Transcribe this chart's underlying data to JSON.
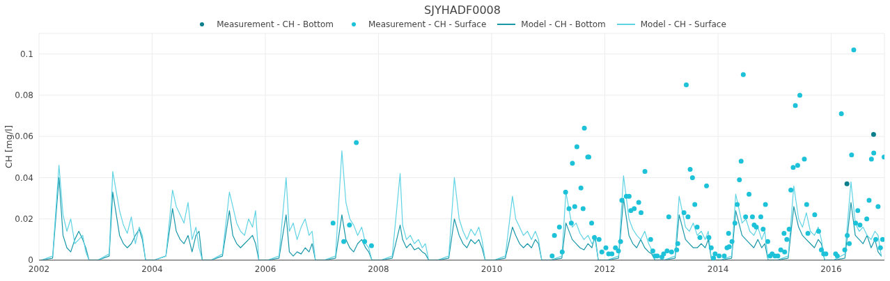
{
  "chart_data": {
    "type": "line",
    "title": "SJYHADF0008",
    "ylabel": "CH [mg/l]",
    "legend": "top",
    "grid": true,
    "xlim": [
      "2002-01-01",
      "2016-12-10"
    ],
    "xticks": [
      "2002",
      "2004",
      "2006",
      "2008",
      "2010",
      "2012",
      "2014",
      "2016"
    ],
    "ylim": [
      0,
      0.11
    ],
    "yticks": [
      0,
      0.02,
      0.04,
      0.06,
      0.08,
      0.1
    ],
    "x": [
      "2002-01-15",
      "2002-03-30",
      "2002-05-10",
      "2002-06-05",
      "2002-06-30",
      "2002-07-25",
      "2002-08-20",
      "2002-09-15",
      "2002-10-10",
      "2002-10-30",
      "2002-11-20",
      "2003-01-15",
      "2003-03-30",
      "2003-04-22",
      "2003-06-05",
      "2003-06-30",
      "2003-07-25",
      "2003-08-20",
      "2003-09-15",
      "2003-10-10",
      "2003-10-30",
      "2003-11-20",
      "2004-01-15",
      "2004-03-30",
      "2004-05-12",
      "2004-06-05",
      "2004-06-30",
      "2004-07-25",
      "2004-08-20",
      "2004-09-15",
      "2004-10-10",
      "2004-10-30",
      "2004-11-20",
      "2005-01-15",
      "2005-03-30",
      "2005-05-14",
      "2005-06-05",
      "2005-06-30",
      "2005-07-25",
      "2005-08-20",
      "2005-09-15",
      "2005-10-10",
      "2005-10-30",
      "2005-11-20",
      "2006-01-15",
      "2006-03-30",
      "2006-05-15",
      "2006-06-05",
      "2006-06-30",
      "2006-07-25",
      "2006-08-20",
      "2006-09-15",
      "2006-10-10",
      "2006-10-30",
      "2006-11-20",
      "2007-01-15",
      "2007-03-30",
      "2007-05-10",
      "2007-06-05",
      "2007-06-30",
      "2007-07-25",
      "2007-08-20",
      "2007-09-15",
      "2007-10-10",
      "2007-10-30",
      "2007-11-20",
      "2008-01-15",
      "2008-03-30",
      "2008-05-20",
      "2008-06-05",
      "2008-06-30",
      "2008-07-25",
      "2008-08-20",
      "2008-09-15",
      "2008-10-10",
      "2008-10-30",
      "2008-11-20",
      "2009-01-15",
      "2009-03-30",
      "2009-05-05",
      "2009-06-05",
      "2009-06-30",
      "2009-07-25",
      "2009-08-20",
      "2009-09-15",
      "2009-10-10",
      "2009-10-30",
      "2009-11-20",
      "2010-01-15",
      "2010-03-30",
      "2010-05-15",
      "2010-06-05",
      "2010-06-30",
      "2010-07-25",
      "2010-08-20",
      "2010-09-15",
      "2010-10-10",
      "2010-10-30",
      "2010-11-20",
      "2011-01-15",
      "2011-03-30",
      "2011-04-25",
      "2011-06-05",
      "2011-06-30",
      "2011-07-25",
      "2011-08-20",
      "2011-09-15",
      "2011-10-10",
      "2011-10-30",
      "2011-11-20",
      "2012-01-15",
      "2012-03-30",
      "2012-05-01",
      "2012-06-05",
      "2012-06-30",
      "2012-07-25",
      "2012-08-20",
      "2012-09-15",
      "2012-10-10",
      "2012-10-30",
      "2012-11-20",
      "2013-01-15",
      "2013-03-30",
      "2013-04-25",
      "2013-06-05",
      "2013-06-30",
      "2013-07-25",
      "2013-08-20",
      "2013-09-15",
      "2013-10-10",
      "2013-10-30",
      "2013-11-20",
      "2014-01-15",
      "2014-03-30",
      "2014-04-25",
      "2014-06-05",
      "2014-06-30",
      "2014-07-25",
      "2014-08-20",
      "2014-09-15",
      "2014-10-10",
      "2014-10-30",
      "2014-11-20",
      "2015-01-15",
      "2015-03-30",
      "2015-05-05",
      "2015-06-05",
      "2015-06-30",
      "2015-07-25",
      "2015-08-20",
      "2015-09-15",
      "2015-10-10",
      "2015-10-30",
      "2015-11-20",
      "2016-01-15",
      "2016-03-30",
      "2016-05-08",
      "2016-06-05",
      "2016-06-30",
      "2016-07-25",
      "2016-08-20",
      "2016-09-15",
      "2016-10-10",
      "2016-10-30",
      "2016-11-20"
    ],
    "series": [
      {
        "name": "Measurement - CH - Bottom",
        "type": "scatter",
        "marker": "circle",
        "color": "#0b7f8c",
        "x": [
          "2016-04-12",
          "2016-10-01"
        ],
        "values": [
          0.037,
          0.061
        ]
      },
      {
        "name": "Measurement - CH - Surface",
        "type": "scatter",
        "marker": "circle",
        "color": "#1ec2d8",
        "x": [
          "2007-03-14",
          "2007-05-22",
          "2007-06-28",
          "2007-08-11",
          "2007-10-04",
          "2007-11-17",
          "2011-01-26",
          "2011-02-10",
          "2011-03-14",
          "2011-04-01",
          "2011-04-23",
          "2011-05-15",
          "2011-05-30",
          "2011-06-06",
          "2011-06-21",
          "2011-07-05",
          "2011-07-31",
          "2011-08-14",
          "2011-08-22",
          "2011-09-13",
          "2011-09-20",
          "2011-10-08",
          "2011-10-26",
          "2011-11-25",
          "2011-12-13",
          "2012-01-08",
          "2012-01-26",
          "2012-02-16",
          "2012-03-10",
          "2012-03-29",
          "2012-04-12",
          "2012-04-20",
          "2012-05-19",
          "2012-06-06",
          "2012-06-17",
          "2012-07-09",
          "2012-08-07",
          "2012-08-22",
          "2012-09-16",
          "2012-10-23",
          "2012-11-06",
          "2012-11-21",
          "2012-12-05",
          "2013-01-04",
          "2013-01-15",
          "2013-02-06",
          "2013-02-17",
          "2013-03-07",
          "2013-04-09",
          "2013-04-16",
          "2013-05-26",
          "2013-06-10",
          "2013-06-21",
          "2013-07-05",
          "2013-07-20",
          "2013-08-04",
          "2013-08-19",
          "2013-09-06",
          "2013-10-19",
          "2013-11-03",
          "2013-11-18",
          "2013-12-03",
          "2013-12-13",
          "2014-01-08",
          "2014-02-10",
          "2014-02-28",
          "2014-03-10",
          "2014-03-14",
          "2014-04-01",
          "2014-04-20",
          "2014-05-05",
          "2014-05-19",
          "2014-05-30",
          "2014-06-13",
          "2014-06-28",
          "2014-07-20",
          "2014-08-11",
          "2014-08-22",
          "2014-09-05",
          "2014-10-04",
          "2014-10-19",
          "2014-11-03",
          "2014-11-18",
          "2014-12-03",
          "2014-12-16",
          "2015-01-04",
          "2015-01-22",
          "2015-02-10",
          "2015-03-03",
          "2015-03-07",
          "2015-03-21",
          "2015-04-05",
          "2015-04-16",
          "2015-05-01",
          "2015-05-15",
          "2015-05-30",
          "2015-06-13",
          "2015-07-12",
          "2015-07-27",
          "2015-08-04",
          "2015-09-17",
          "2015-10-12",
          "2015-10-30",
          "2015-11-14",
          "2015-11-28",
          "2016-01-30",
          "2016-02-10",
          "2016-03-07",
          "2016-03-29",
          "2016-04-14",
          "2016-04-27",
          "2016-05-12",
          "2016-05-26",
          "2016-06-07",
          "2016-06-21",
          "2016-07-05",
          "2016-08-18",
          "2016-09-02",
          "2016-09-17",
          "2016-10-02",
          "2016-10-15",
          "2016-10-30",
          "2016-11-14",
          "2016-11-28",
          "2016-12-08"
        ],
        "values": [
          0.018,
          0.009,
          0.017,
          0.057,
          0.009,
          0.007,
          0.002,
          0.012,
          0.016,
          0.004,
          0.033,
          0.025,
          0.018,
          0.047,
          0.026,
          0.055,
          0.035,
          0.025,
          0.064,
          0.05,
          0.05,
          0.018,
          0.011,
          0.01,
          0.004,
          0.006,
          0.003,
          0.003,
          0.006,
          0.0045,
          0.009,
          0.029,
          0.031,
          0.031,
          0.024,
          0.025,
          0.028,
          0.023,
          0.043,
          0.01,
          0.0045,
          0.002,
          0.002,
          0.0015,
          0.003,
          0.0045,
          0.021,
          0.004,
          0.005,
          0.008,
          0.023,
          0.085,
          0.021,
          0.044,
          0.04,
          0.027,
          0.016,
          0.011,
          0.036,
          0.011,
          0.006,
          0.001,
          0.003,
          0.002,
          0.002,
          0.006,
          0.013,
          0.0065,
          0.009,
          0.018,
          0.027,
          0.039,
          0.048,
          0.09,
          0.021,
          0.032,
          0.021,
          0.017,
          0.016,
          0.021,
          0.015,
          0.027,
          0.009,
          0.002,
          0.003,
          0.002,
          0.002,
          0.005,
          0.013,
          0.004,
          0.01,
          0.015,
          0.034,
          0.045,
          0.075,
          0.046,
          0.08,
          0.049,
          0.027,
          0.013,
          0.022,
          0.014,
          0.005,
          0.003,
          0.003,
          0.003,
          0.002,
          0.071,
          0.005,
          0.012,
          0.008,
          0.051,
          0.102,
          0.018,
          0.024,
          0.017,
          0.02,
          0.029,
          0.049,
          0.052,
          0.01,
          0.026,
          0.006,
          0.01,
          0.05
        ]
      },
      {
        "name": "Model - CH - Bottom",
        "color": "#1797a8",
        "values": [
          0,
          0.001,
          0.04,
          0.012,
          0.006,
          0.004,
          0.01,
          0.014,
          0.01,
          0.006,
          0,
          0,
          0.002,
          0.033,
          0.012,
          0.008,
          0.006,
          0.008,
          0.012,
          0.015,
          0.01,
          0,
          0,
          0.002,
          0.025,
          0.014,
          0.01,
          0.008,
          0.012,
          0.004,
          0.012,
          0.014,
          0,
          0,
          0.002,
          0.024,
          0.012,
          0.008,
          0.006,
          0.008,
          0.01,
          0.012,
          0.008,
          0,
          0,
          0.001,
          0.022,
          0.004,
          0.002,
          0.004,
          0.003,
          0.006,
          0.004,
          0.008,
          0,
          0,
          0.001,
          0.022,
          0.01,
          0.006,
          0.004,
          0.008,
          0.01,
          0.006,
          0.004,
          0,
          0,
          0.001,
          0.017,
          0.01,
          0.006,
          0.008,
          0.005,
          0.006,
          0.004,
          0.003,
          0,
          0,
          0.001,
          0.02,
          0.012,
          0.008,
          0.006,
          0.01,
          0.008,
          0.01,
          0.006,
          0,
          0,
          0.001,
          0.016,
          0.012,
          0.008,
          0.006,
          0.008,
          0.006,
          0.01,
          0.008,
          0,
          0,
          0.001,
          0.018,
          0.01,
          0.008,
          0.006,
          0.005,
          0.008,
          0.006,
          0.012,
          0,
          0,
          0.001,
          0.03,
          0.012,
          0.008,
          0.006,
          0.01,
          0.006,
          0.004,
          0.003,
          0,
          0,
          0.001,
          0.022,
          0.01,
          0.008,
          0.006,
          0.006,
          0.008,
          0.006,
          0.01,
          0,
          0,
          0.001,
          0.024,
          0.012,
          0.01,
          0.008,
          0.006,
          0.01,
          0.006,
          0.008,
          0,
          0,
          0.001,
          0.026,
          0.016,
          0.012,
          0.01,
          0.008,
          0.006,
          0.01,
          0.008,
          0,
          0,
          0.001,
          0.028,
          0.012,
          0.01,
          0.008,
          0.012,
          0.006,
          0.01,
          0.004,
          0.002
        ]
      },
      {
        "name": "Model - CH - Surface",
        "color": "#5fd3e4",
        "values": [
          0,
          0.002,
          0.046,
          0.022,
          0.014,
          0.02,
          0.008,
          0.01,
          0.012,
          0.004,
          0,
          0,
          0.003,
          0.043,
          0.024,
          0.017,
          0.013,
          0.021,
          0.008,
          0.016,
          0.012,
          0,
          0,
          0.002,
          0.034,
          0.026,
          0.022,
          0.018,
          0.028,
          0.01,
          0.016,
          0.006,
          0,
          0,
          0.003,
          0.033,
          0.026,
          0.018,
          0.014,
          0.012,
          0.02,
          0.016,
          0.024,
          0,
          0,
          0.002,
          0.04,
          0.014,
          0.018,
          0.01,
          0.016,
          0.02,
          0.012,
          0.014,
          0,
          0,
          0.002,
          0.053,
          0.028,
          0.02,
          0.017,
          0.012,
          0.016,
          0.008,
          0.006,
          0,
          0,
          0.002,
          0.042,
          0.017,
          0.01,
          0.012,
          0.008,
          0.01,
          0.006,
          0.008,
          0,
          0,
          0.002,
          0.04,
          0.02,
          0.014,
          0.01,
          0.015,
          0.012,
          0.016,
          0.01,
          0,
          0,
          0.002,
          0.031,
          0.02,
          0.016,
          0.012,
          0.014,
          0.01,
          0.014,
          0.01,
          0,
          0,
          0.002,
          0.033,
          0.016,
          0.018,
          0.013,
          0.01,
          0.012,
          0.008,
          0.01,
          0,
          0,
          0.002,
          0.041,
          0.02,
          0.015,
          0.012,
          0.01,
          0.014,
          0.008,
          0.005,
          0,
          0,
          0.002,
          0.031,
          0.016,
          0.014,
          0.018,
          0.012,
          0.014,
          0.01,
          0.014,
          0,
          0,
          0.002,
          0.032,
          0.018,
          0.02,
          0.014,
          0.012,
          0.016,
          0.01,
          0.014,
          0,
          0,
          0.002,
          0.036,
          0.02,
          0.016,
          0.023,
          0.014,
          0.012,
          0.016,
          0.01,
          0,
          0,
          0.003,
          0.038,
          0.018,
          0.014,
          0.016,
          0.012,
          0.01,
          0.014,
          0.012,
          0.002
        ]
      }
    ]
  }
}
